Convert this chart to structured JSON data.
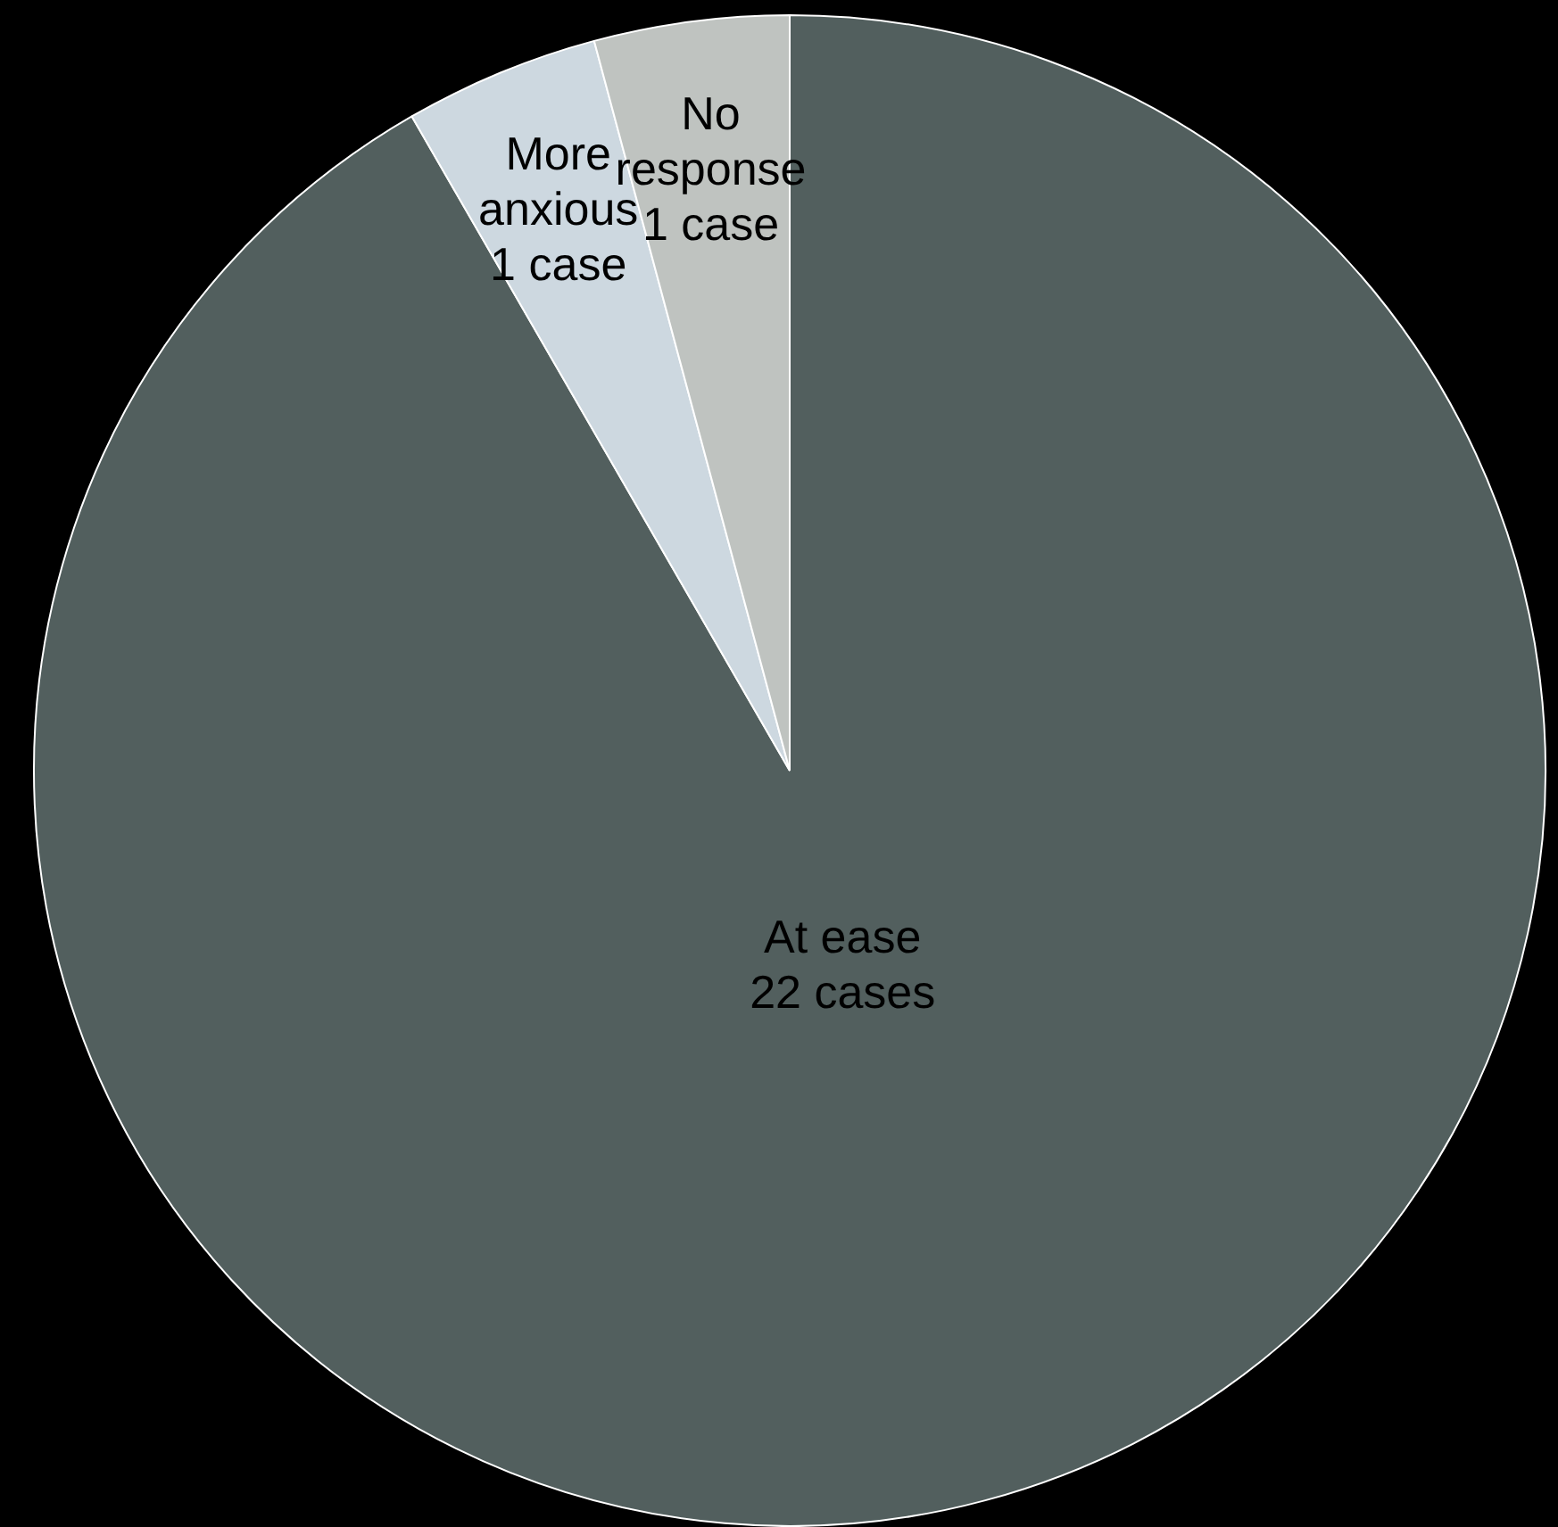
{
  "chart_data": {
    "type": "pie",
    "categories": [
      "At ease",
      "More anxious",
      "No response"
    ],
    "values": [
      22,
      1,
      1
    ],
    "colors": [
      "#525f5e",
      "#cdd8e0",
      "#bfc3c0"
    ],
    "value_labels": [
      "22 cases",
      "1 case",
      "1 case"
    ],
    "legend": false
  }
}
